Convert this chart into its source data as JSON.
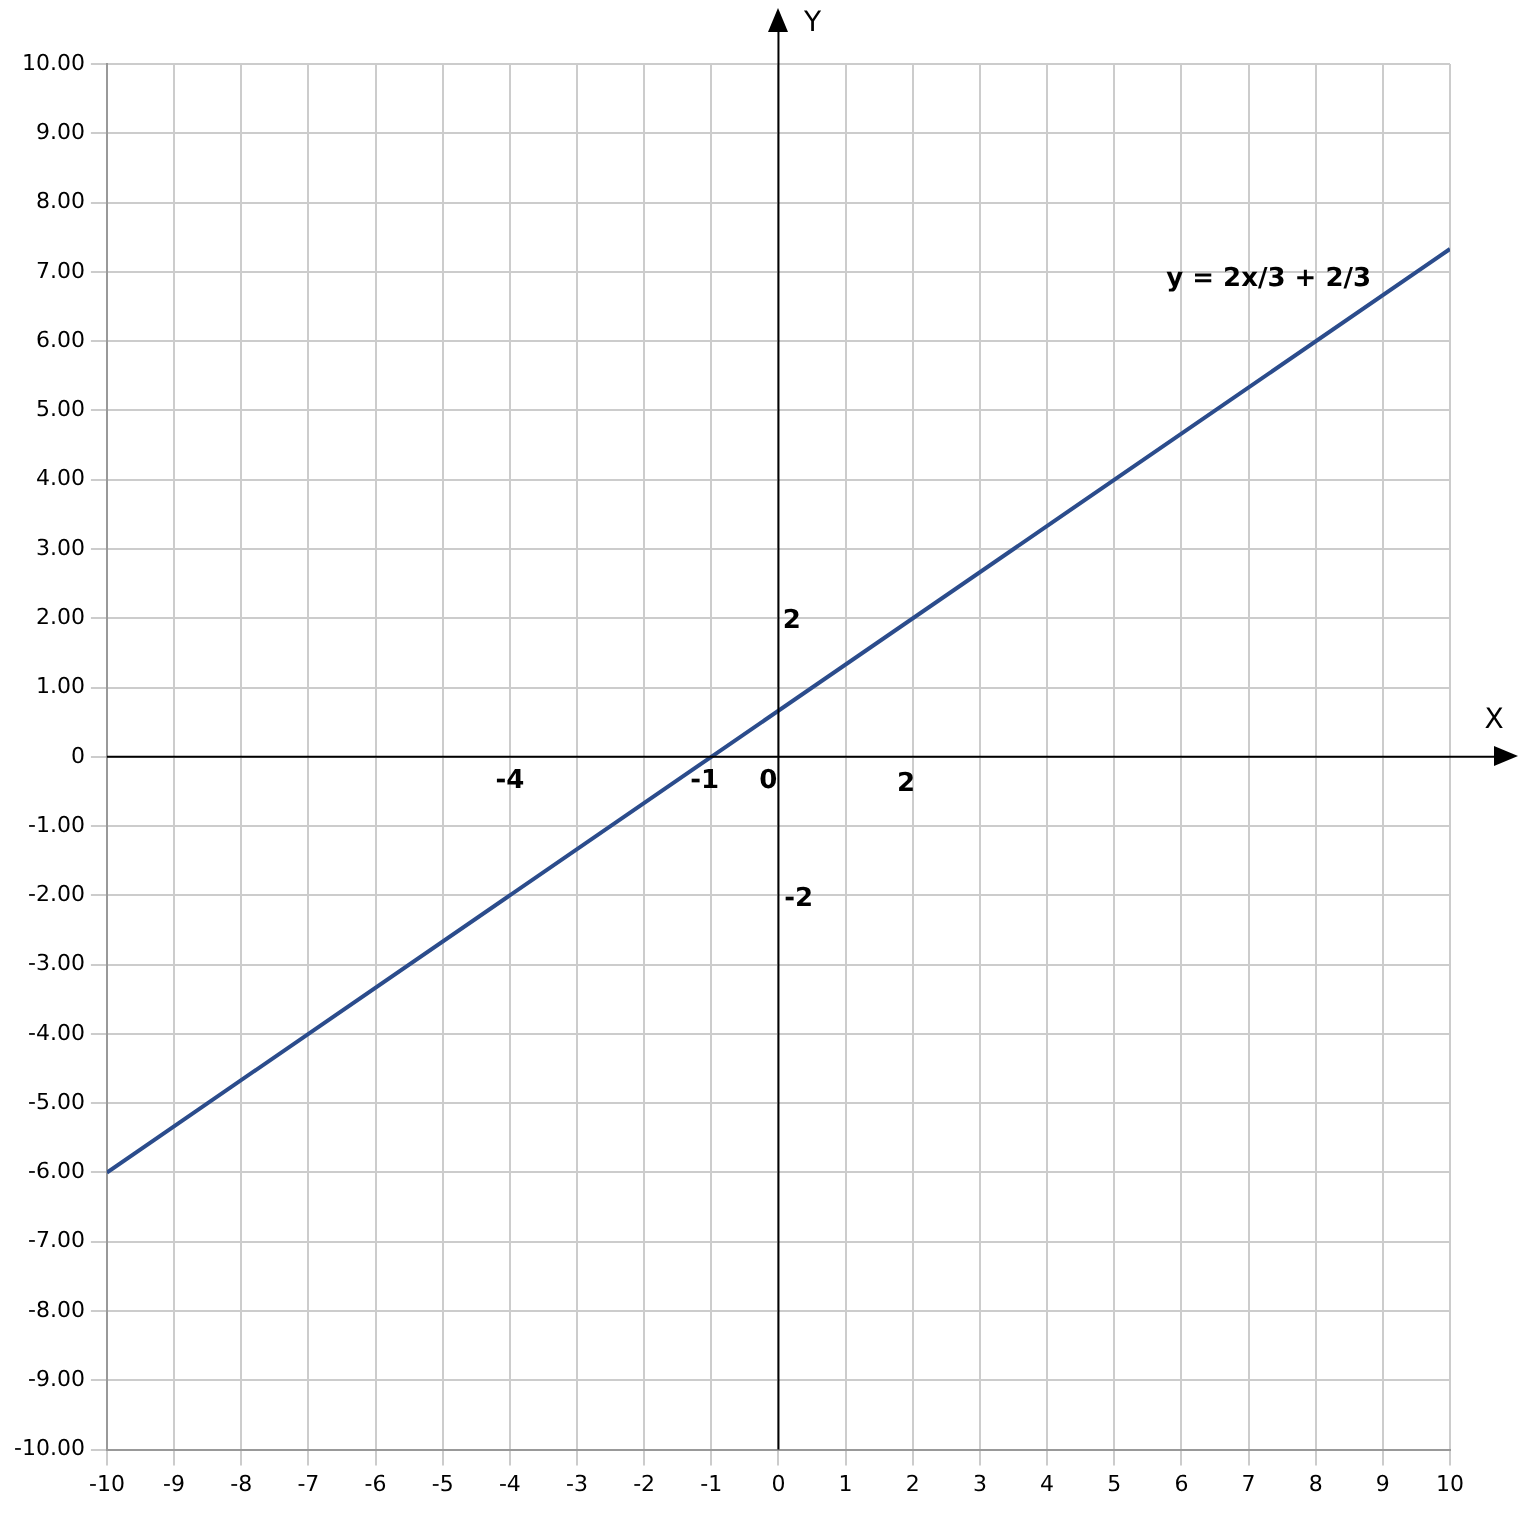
{
  "chart_data": {
    "type": "line",
    "xlabel": "X",
    "ylabel": "Y",
    "x": [
      -10,
      -1,
      10
    ],
    "series": [
      {
        "color": "#2b4c8c",
        "values": [
          -6,
          0,
          7.33
        ]
      }
    ],
    "xlim": [
      -10,
      10
    ],
    "xticks": [
      -10,
      -9,
      -8,
      -7,
      -6,
      -5,
      -4,
      -3,
      -2,
      -1,
      0,
      1,
      2,
      3,
      4,
      5,
      6,
      7,
      8,
      9,
      10
    ],
    "ylim": [
      -10,
      10
    ],
    "yticks": [
      {
        "value": -10,
        "label": "-10.00"
      },
      {
        "value": -9,
        "label": "-9.00"
      },
      {
        "value": -8,
        "label": "-8.00"
      },
      {
        "value": -7,
        "label": "-7.00"
      },
      {
        "value": -6,
        "label": "-6.00"
      },
      {
        "value": -5,
        "label": "-5.00"
      },
      {
        "value": -4,
        "label": "-4.00"
      },
      {
        "value": -3,
        "label": "-3.00"
      },
      {
        "value": -2,
        "label": "-2.00"
      },
      {
        "value": -1,
        "label": "-1.00"
      },
      0,
      {
        "value": 1,
        "label": "1.00"
      },
      {
        "value": 2,
        "label": "2.00"
      },
      {
        "value": 3,
        "label": "3.00"
      },
      {
        "value": 4,
        "label": "4.00"
      },
      {
        "value": 5,
        "label": "5.00"
      },
      {
        "value": 6,
        "label": "6.00"
      },
      {
        "value": 7,
        "label": "7.00"
      },
      {
        "value": 8,
        "label": "8.00"
      },
      {
        "value": 9,
        "label": "9.00"
      },
      {
        "value": 10,
        "label": "10.00"
      }
    ],
    "annotations": [
      "y = 2x/3 + 2/3",
      "-4",
      "-1",
      "0",
      "2",
      "2",
      "-2"
    ],
    "grid": true,
    "legend": false,
    "marker": "none",
    "line_style": "solid"
  }
}
